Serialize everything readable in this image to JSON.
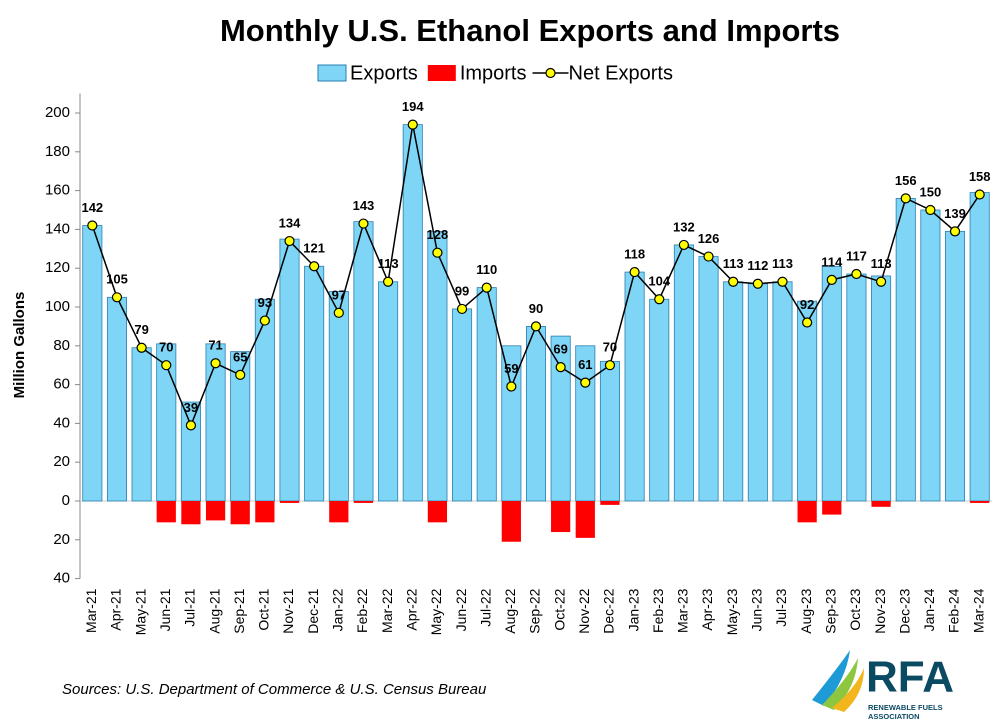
{
  "chart_data": {
    "type": "bar-line",
    "title": "Monthly U.S. Ethanol Exports and Imports",
    "y_label": "Million Gallons",
    "source": "Sources: U.S. Department of Commerce & U.S. Census Bureau",
    "logo": {
      "text": "RFA",
      "lines": [
        "RENEWABLE FUELS",
        "ASSOCIATION"
      ]
    },
    "legend": "top",
    "grid": false,
    "categories": [
      "Mar-21",
      "Apr-21",
      "May-21",
      "Jun-21",
      "Jul-21",
      "Aug-21",
      "Sep-21",
      "Oct-21",
      "Nov-21",
      "Dec-21",
      "Jan-22",
      "Feb-22",
      "Mar-22",
      "Apr-22",
      "May-22",
      "Jun-22",
      "Jul-22",
      "Aug-22",
      "Sep-22",
      "Oct-22",
      "Nov-22",
      "Dec-22",
      "Jan-23",
      "Feb-23",
      "Mar-23",
      "Apr-23",
      "May-23",
      "Jun-23",
      "Jul-23",
      "Aug-23",
      "Sep-23",
      "Oct-23",
      "Nov-23",
      "Dec-23",
      "Jan-24",
      "Feb-24",
      "Mar-24"
    ],
    "series": [
      {
        "name": "Exports",
        "kind": "bar",
        "color": "#7fd5f5",
        "values": [
          142,
          105,
          79,
          81,
          51,
          81,
          77,
          104,
          135,
          121,
          108,
          144,
          113,
          194,
          139,
          99,
          110,
          80,
          90,
          85,
          80,
          72,
          118,
          104,
          132,
          126,
          113,
          112,
          113,
          103,
          121,
          117,
          116,
          156,
          150,
          139,
          159
        ]
      },
      {
        "name": "Imports",
        "kind": "bar",
        "color": "#ff0000",
        "values": [
          0,
          0,
          0,
          -11,
          -12,
          -10,
          -12,
          -11,
          -1,
          0,
          -11,
          -1,
          0,
          0,
          -11,
          0,
          0,
          -21,
          0,
          -16,
          -19,
          -2,
          0,
          0,
          0,
          0,
          0,
          0,
          0,
          -11,
          -7,
          0,
          -3,
          0,
          0,
          0,
          -1
        ]
      },
      {
        "name": "Net Exports",
        "kind": "line",
        "color": "#000000",
        "marker_color": "#ffff00",
        "values": [
          142,
          105,
          79,
          70,
          39,
          71,
          65,
          93,
          134,
          121,
          97,
          143,
          113,
          194,
          128,
          99,
          110,
          59,
          90,
          69,
          61,
          70,
          118,
          104,
          132,
          126,
          113,
          112,
          113,
          92,
          114,
          117,
          113,
          156,
          150,
          139,
          158
        ]
      }
    ],
    "ylim": [
      -40,
      210
    ],
    "yticks": [
      {
        "value": -40,
        "label": "40"
      },
      {
        "value": -20,
        "label": "20"
      },
      0,
      20,
      40,
      60,
      80,
      100,
      120,
      140,
      160,
      180,
      200
    ]
  }
}
